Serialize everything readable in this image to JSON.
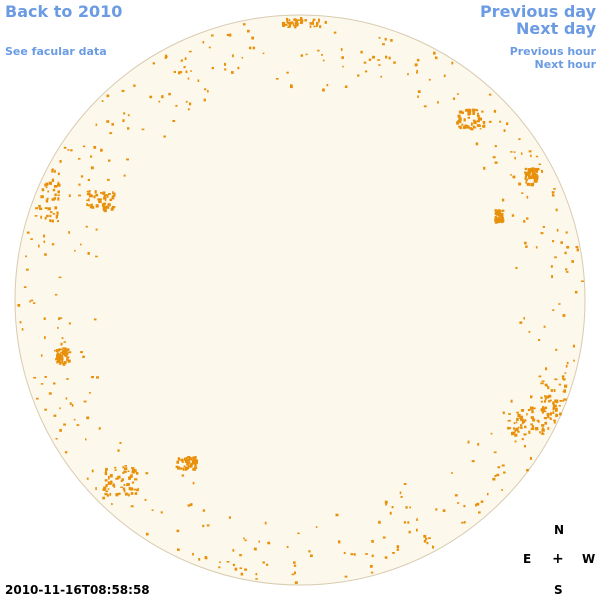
{
  "nav": {
    "back": "Back to 2010",
    "facular": "See facular data",
    "previous_day": "Previous day",
    "next_day": "Next day",
    "previous_hour": "Previous hour",
    "next_hour": "Next hour"
  },
  "compass": {
    "north": "N",
    "east": "E",
    "center": "+",
    "west": "W",
    "south": "S"
  },
  "timestamp": "2010-11-16T08:58:58",
  "colors": {
    "disk_fill": "#fdf8ec",
    "disk_edge": "#d8cbb0",
    "facula": "#e8900a",
    "link": "#6a9be3"
  }
}
